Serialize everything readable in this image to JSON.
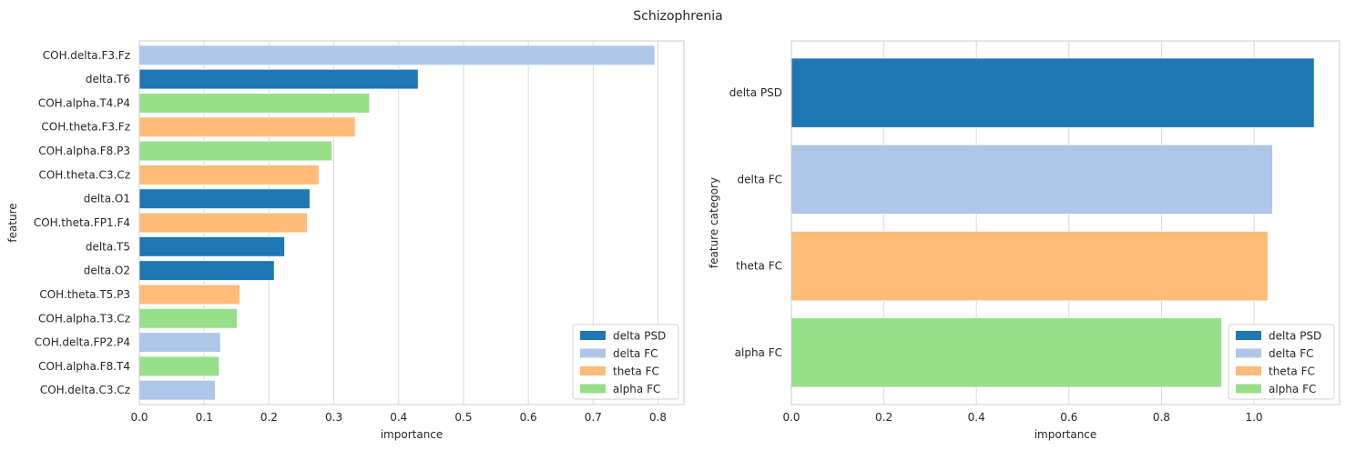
{
  "figure": {
    "suptitle": "Schizophrenia"
  },
  "colors": {
    "delta PSD": "#1f77b4",
    "delta FC": "#aec7e8",
    "theta FC": "#ffbb78",
    "alpha FC": "#98df8a",
    "grid": "#d9d9d9",
    "spine": "#cccccc"
  },
  "legend": {
    "placement": "lower-right",
    "entries": [
      "delta PSD",
      "delta FC",
      "theta FC",
      "alpha FC"
    ]
  },
  "chart_data": [
    {
      "type": "bar",
      "orientation": "horizontal",
      "xlabel": "importance",
      "ylabel": "feature",
      "xlim": [
        0,
        0.84
      ],
      "xticks": [
        0.0,
        0.1,
        0.2,
        0.3,
        0.4,
        0.5,
        0.6,
        0.7,
        0.8
      ],
      "xtick_labels": [
        "0.0",
        "0.1",
        "0.2",
        "0.3",
        "0.4",
        "0.5",
        "0.6",
        "0.7",
        "0.8"
      ],
      "grid": true,
      "categories": [
        "COH.delta.F3.Fz",
        "delta.T6",
        "COH.alpha.T4.P4",
        "COH.theta.F3.Fz",
        "COH.alpha.F8.P3",
        "COH.theta.C3.Cz",
        "delta.O1",
        "COH.theta.FP1.F4",
        "delta.T5",
        "delta.O2",
        "COH.theta.T5.P3",
        "COH.alpha.T3.Cz",
        "COH.delta.FP2.P4",
        "COH.alpha.F8.T4",
        "COH.delta.C3.Cz"
      ],
      "values": [
        0.795,
        0.43,
        0.355,
        0.333,
        0.297,
        0.277,
        0.263,
        0.259,
        0.224,
        0.208,
        0.155,
        0.151,
        0.125,
        0.123,
        0.117
      ],
      "groups": [
        "delta FC",
        "delta PSD",
        "alpha FC",
        "theta FC",
        "alpha FC",
        "theta FC",
        "delta PSD",
        "theta FC",
        "delta PSD",
        "delta PSD",
        "theta FC",
        "alpha FC",
        "delta FC",
        "alpha FC",
        "delta FC"
      ],
      "legend": [
        "delta PSD",
        "delta FC",
        "theta FC",
        "alpha FC"
      ]
    },
    {
      "type": "bar",
      "orientation": "horizontal",
      "xlabel": "importance",
      "ylabel": "feature category",
      "xlim": [
        0,
        1.185
      ],
      "xticks": [
        0.0,
        0.2,
        0.4,
        0.6,
        0.8,
        1.0
      ],
      "xtick_labels": [
        "0.0",
        "0.2",
        "0.4",
        "0.6",
        "0.8",
        "1.0"
      ],
      "grid": true,
      "categories": [
        "delta PSD",
        "delta FC",
        "theta FC",
        "alpha FC"
      ],
      "values": [
        1.13,
        1.04,
        1.03,
        0.93
      ],
      "groups": [
        "delta PSD",
        "delta FC",
        "theta FC",
        "alpha FC"
      ],
      "legend": [
        "delta PSD",
        "delta FC",
        "theta FC",
        "alpha FC"
      ]
    }
  ]
}
